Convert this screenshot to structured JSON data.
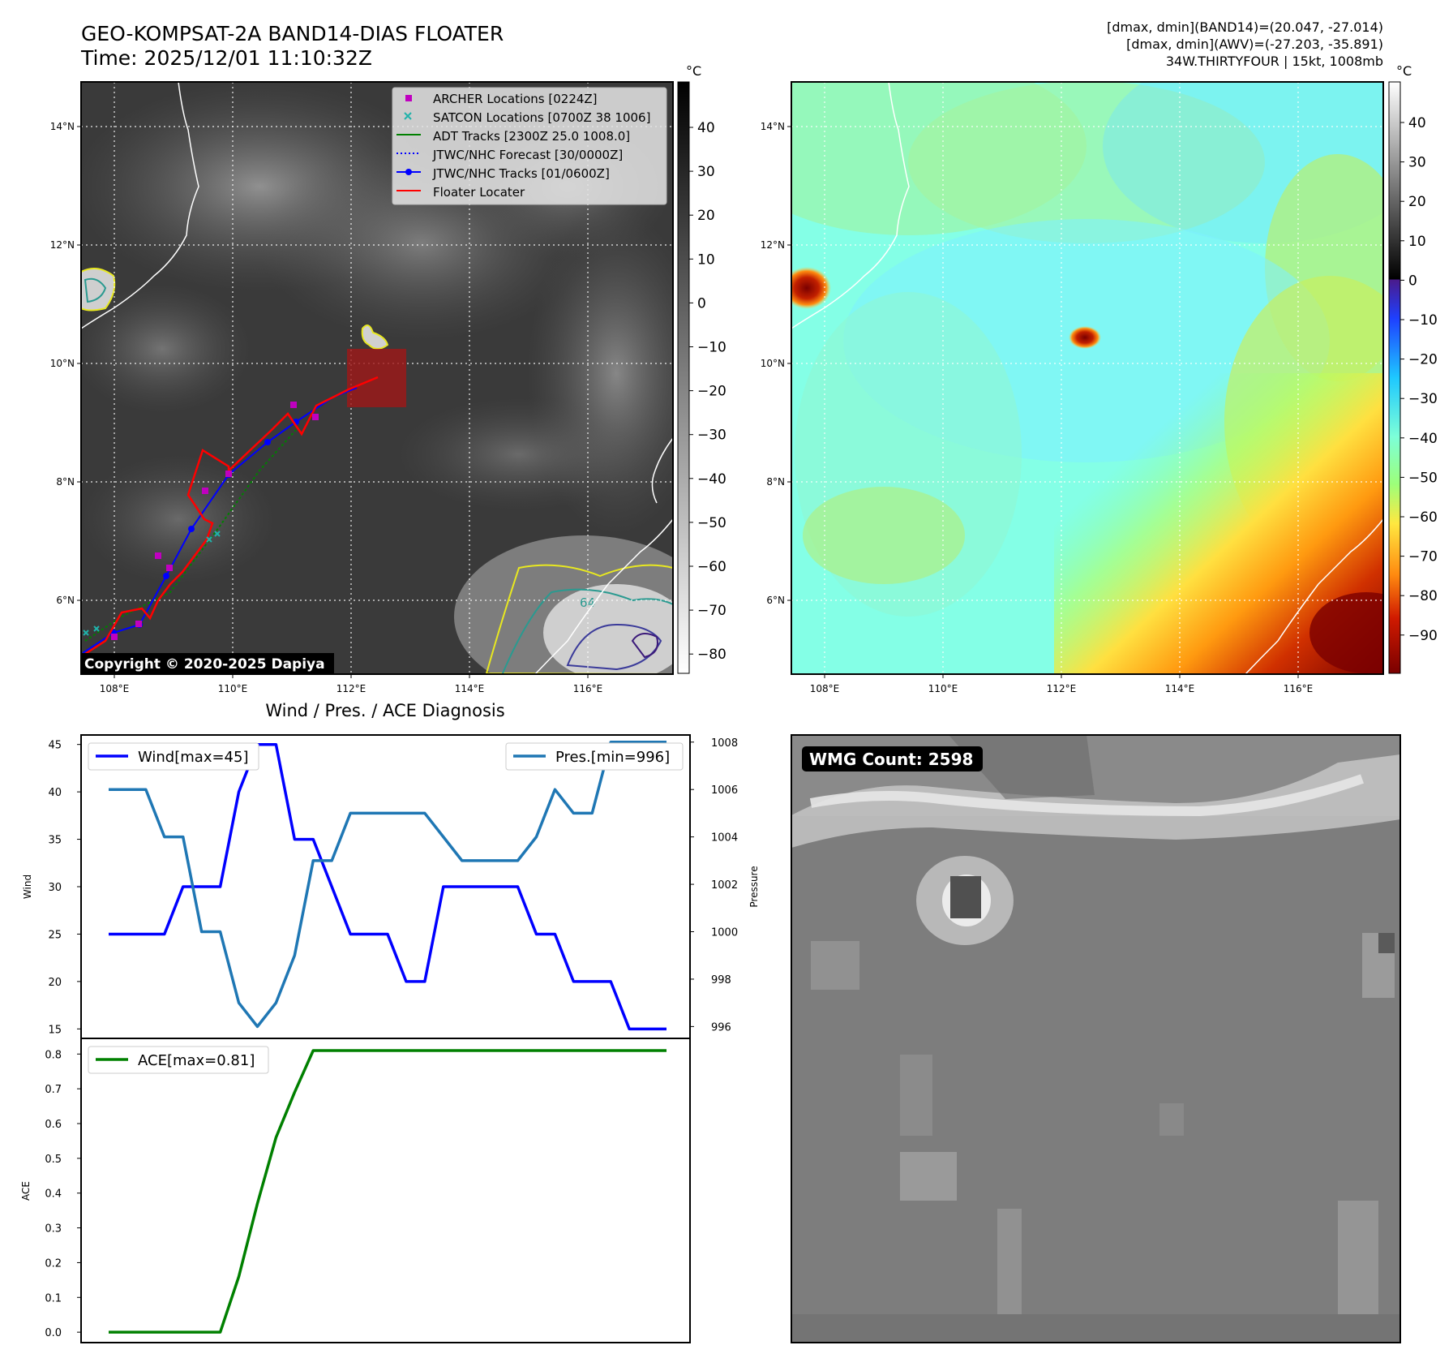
{
  "header": {
    "title_line1": "GEO-KOMPSAT-2A BAND14-DIAS FLOATER",
    "title_line2": "Time: 2025/12/01 11:10:32Z",
    "right_line1": "[dmax, dmin](BAND14)=(20.047, -27.014)",
    "right_line2": "[dmax, dmin](AWV)=(-27.203, -35.891)",
    "right_line3": "34W.THIRTYFOUR | 15kt, 1008mb"
  },
  "ir_panel": {
    "colorbar_unit": "°C",
    "colorbar_ticks": [
      "40",
      "30",
      "20",
      "10",
      "0",
      "−10",
      "−20",
      "−30",
      "−40",
      "−50",
      "−60",
      "−70",
      "−80"
    ],
    "lon_ticks": [
      "108°E",
      "110°E",
      "112°E",
      "114°E",
      "116°E"
    ],
    "lat_ticks": [
      "14°N",
      "12°N",
      "10°N",
      "8°N",
      "6°N"
    ],
    "legend": [
      {
        "label": "ARCHER Locations [0224Z]",
        "marker": "square",
        "color": "#c000c0"
      },
      {
        "label": "SATCON Locations [0700Z 38 1006]",
        "marker": "x",
        "color": "#20b2aa"
      },
      {
        "label": "ADT Tracks [2300Z 25.0 1008.0]",
        "marker": "line",
        "color": "#008000"
      },
      {
        "label": "JTWC/NHC Forecast [30/0000Z]",
        "marker": "dotted",
        "color": "#0000ff"
      },
      {
        "label": "JTWC/NHC Tracks [01/0600Z]",
        "marker": "line-dot",
        "color": "#0000ff"
      },
      {
        "label": "Floater Locater",
        "marker": "line",
        "color": "#ff0000"
      }
    ],
    "contour_label": "64",
    "copyright": "Copyright © 2020-2025 Dapiya"
  },
  "awv_panel": {
    "colorbar_unit": "°C",
    "colorbar_ticks": [
      "40",
      "30",
      "20",
      "10",
      "0",
      "−10",
      "−20",
      "−30",
      "−40",
      "−50",
      "−60",
      "−70",
      "−80",
      "−90"
    ],
    "lon_ticks": [
      "108°E",
      "110°E",
      "112°E",
      "114°E",
      "116°E"
    ],
    "lat_ticks": [
      "14°N",
      "12°N",
      "10°N",
      "8°N",
      "6°N"
    ]
  },
  "diag_title": "Wind / Pres. / ACE Diagnosis",
  "wmg_label": "WMG Count: 2598",
  "chart_data": [
    {
      "type": "line",
      "title": "Wind / Pres. / ACE Diagnosis",
      "ylabel": "Wind",
      "ylabel_right": "Pressure",
      "ylim": [
        14,
        46
      ],
      "ylim_right": [
        995.5,
        1008.3
      ],
      "yticks": [
        15,
        20,
        25,
        30,
        35,
        40,
        45
      ],
      "yticks_right": [
        996,
        998,
        1000,
        1002,
        1004,
        1006,
        1008
      ],
      "series": [
        {
          "name": "Wind[max=45]",
          "color": "#0000ff",
          "axis": "left",
          "values": [
            25,
            25,
            25,
            25,
            30,
            30,
            30,
            40,
            45,
            45,
            35,
            35,
            30,
            25,
            25,
            25,
            20,
            20,
            30,
            30,
            30,
            30,
            30,
            25,
            25,
            20,
            20,
            20,
            15,
            15,
            15
          ]
        },
        {
          "name": "Pres.[min=996]",
          "color": "#1f77b4",
          "axis": "right",
          "values": [
            1006,
            1006,
            1006,
            1004,
            1004,
            1000,
            1000,
            997,
            996,
            997,
            999,
            1003,
            1003,
            1005,
            1005,
            1005,
            1005,
            1005,
            1004,
            1003,
            1003,
            1003,
            1003,
            1004,
            1006,
            1005,
            1005,
            1008,
            1008,
            1008,
            1008
          ]
        }
      ]
    },
    {
      "type": "line",
      "ylabel": "ACE",
      "ylim": [
        -0.03,
        0.845
      ],
      "yticks": [
        "0.0",
        "0.1",
        "0.2",
        "0.3",
        "0.4",
        "0.5",
        "0.6",
        "0.7",
        "0.8"
      ],
      "series": [
        {
          "name": "ACE[max=0.81]",
          "color": "#008000",
          "values": [
            0,
            0,
            0,
            0,
            0,
            0,
            0,
            0.16,
            0.37,
            0.56,
            0.69,
            0.81,
            0.81,
            0.81,
            0.81,
            0.81,
            0.81,
            0.81,
            0.81,
            0.81,
            0.81,
            0.81,
            0.81,
            0.81,
            0.81,
            0.81,
            0.81,
            0.81,
            0.81,
            0.81,
            0.81
          ]
        }
      ]
    }
  ]
}
